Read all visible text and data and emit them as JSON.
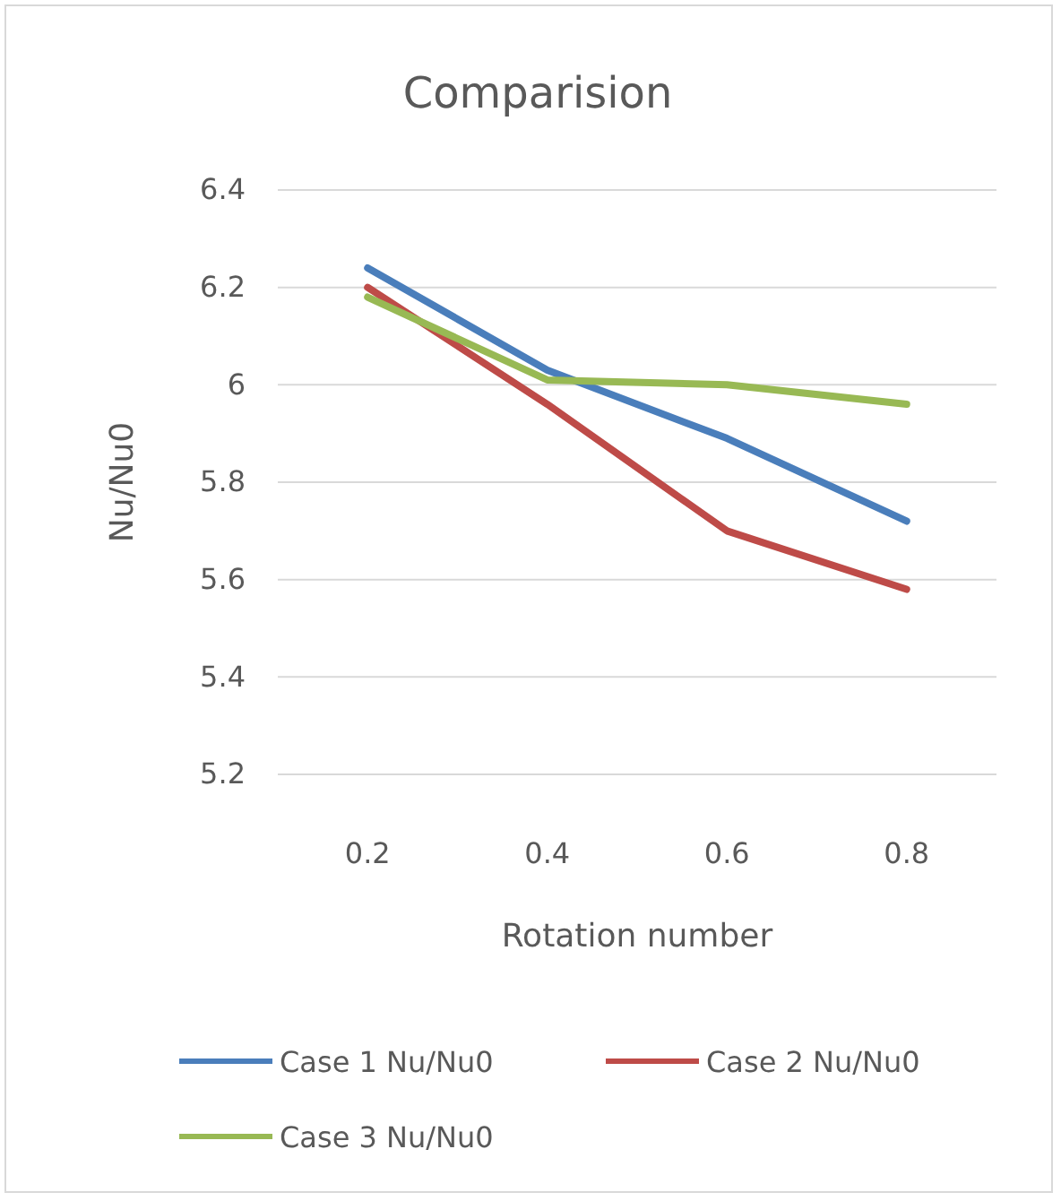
{
  "chart_data": {
    "type": "line",
    "title": "Comparision",
    "xlabel": "Rotation number",
    "ylabel": "Nu/Nu0",
    "categories": [
      "0.2",
      "0.4",
      "0.6",
      "0.8"
    ],
    "series": [
      {
        "name": "Case 1 Nu/Nu0",
        "color": "#4a7ebb",
        "values": [
          6.24,
          6.03,
          5.89,
          5.72
        ]
      },
      {
        "name": "Case 2 Nu/Nu0",
        "color": "#be4b48",
        "values": [
          6.2,
          5.96,
          5.7,
          5.58
        ]
      },
      {
        "name": "Case 3 Nu/Nu0",
        "color": "#98b954",
        "values": [
          6.18,
          6.01,
          6.0,
          5.96
        ]
      }
    ],
    "ylim": [
      5.2,
      6.4
    ],
    "yticks": [
      5.2,
      5.4,
      5.6,
      5.8,
      6,
      6.2,
      6.4
    ],
    "grid": "y",
    "legend": "bottom",
    "line_style": "solid",
    "marker": "none"
  }
}
